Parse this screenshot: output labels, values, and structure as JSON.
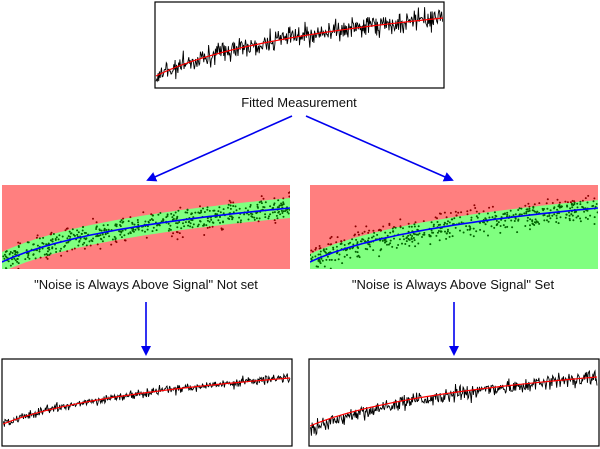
{
  "labels": {
    "top": "Fitted Measurement",
    "left": "\"Noise is Always Above Signal\" Not set",
    "right": "\"Noise is Always Above Signal\" Set"
  },
  "colors": {
    "background": "#ffffff",
    "measurement_trace": "#000000",
    "fit_line": "#ff0000",
    "signal_curve": "#0000ff",
    "band_red": "#ff7f7f",
    "band_green": "#80ff80",
    "arrow": "#0000ee",
    "noise_point_above": "#8b0000",
    "noise_point_below": "#006400"
  },
  "icons": {
    "arrows": "arrow-down-icon"
  }
}
